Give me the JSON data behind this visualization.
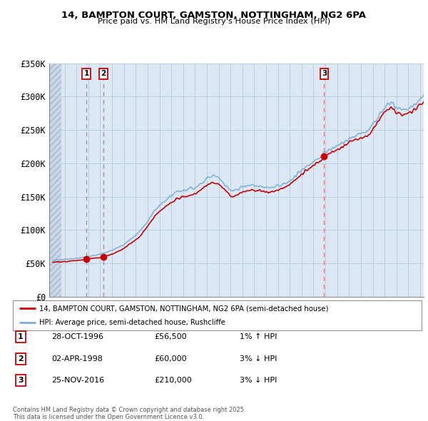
{
  "title": "14, BAMPTON COURT, GAMSTON, NOTTINGHAM, NG2 6PA",
  "subtitle": "Price paid vs. HM Land Registry's House Price Index (HPI)",
  "legend_label_red": "14, BAMPTON COURT, GAMSTON, NOTTINGHAM, NG2 6PA (semi-detached house)",
  "legend_label_blue": "HPI: Average price, semi-detached house, Rushcliffe",
  "footer_line1": "Contains HM Land Registry data © Crown copyright and database right 2025.",
  "footer_line2": "This data is licensed under the Open Government Licence v3.0.",
  "sales": [
    {
      "num": 1,
      "date": "28-OCT-1996",
      "price": 56500,
      "year": 1996.83,
      "pct": "1%",
      "dir": "↑"
    },
    {
      "num": 2,
      "date": "02-APR-1998",
      "price": 60000,
      "year": 1998.25,
      "pct": "3%",
      "dir": "↓"
    },
    {
      "num": 3,
      "date": "25-NOV-2016",
      "price": 210000,
      "year": 2016.9,
      "pct": "3%",
      "dir": "↓"
    }
  ],
  "ylim": [
    0,
    350000
  ],
  "xlim_start": 1993.7,
  "xlim_end": 2025.3,
  "yticks": [
    0,
    50000,
    100000,
    150000,
    200000,
    250000,
    300000,
    350000
  ],
  "ytick_labels": [
    "£0",
    "£50K",
    "£100K",
    "£150K",
    "£200K",
    "£250K",
    "£300K",
    "£350K"
  ],
  "xticks": [
    1994,
    1995,
    1996,
    1997,
    1998,
    1999,
    2000,
    2001,
    2002,
    2003,
    2004,
    2005,
    2006,
    2007,
    2008,
    2009,
    2010,
    2011,
    2012,
    2013,
    2014,
    2015,
    2016,
    2017,
    2018,
    2019,
    2020,
    2021,
    2022,
    2023,
    2024,
    2025
  ],
  "bg_color": "#ffffff",
  "plot_bg_color": "#dce9f5",
  "hatch_region_end": 1994.75,
  "grid_color": "#b8cfe0",
  "red_color": "#cc0000",
  "blue_color": "#7aaed6",
  "red_dot_color": "#cc0000",
  "dashed_color": "#e87070",
  "hpi_knots": {
    "1994.0": 55000,
    "1994.5": 55500,
    "1995.0": 56000,
    "1995.5": 56800,
    "1996.0": 57500,
    "1996.5": 58500,
    "1997.0": 60500,
    "1997.5": 62000,
    "1998.0": 64000,
    "1998.5": 67000,
    "1999.0": 70000,
    "1999.5": 74000,
    "2000.0": 79000,
    "2000.5": 86000,
    "2001.0": 93000,
    "2001.5": 102000,
    "2002.0": 115000,
    "2002.5": 128000,
    "2003.0": 138000,
    "2003.5": 145000,
    "2004.0": 152000,
    "2004.5": 158000,
    "2005.0": 160000,
    "2005.5": 161000,
    "2006.0": 164000,
    "2006.5": 170000,
    "2007.0": 178000,
    "2007.5": 182000,
    "2008.0": 178000,
    "2008.5": 168000,
    "2009.0": 158000,
    "2009.5": 160000,
    "2010.0": 165000,
    "2010.5": 167000,
    "2011.0": 167000,
    "2011.5": 166000,
    "2012.0": 163000,
    "2012.5": 164000,
    "2013.0": 166000,
    "2013.5": 170000,
    "2014.0": 175000,
    "2014.5": 182000,
    "2015.0": 190000,
    "2015.5": 197000,
    "2016.0": 203000,
    "2016.5": 208000,
    "2017.0": 217000,
    "2017.5": 222000,
    "2018.0": 227000,
    "2018.5": 232000,
    "2019.0": 237000,
    "2019.5": 241000,
    "2020.0": 243000,
    "2020.5": 248000,
    "2021.0": 258000,
    "2021.5": 272000,
    "2022.0": 285000,
    "2022.5": 292000,
    "2023.0": 283000,
    "2023.5": 279000,
    "2024.0": 282000,
    "2024.5": 288000,
    "2025.0": 295000,
    "2025.3": 300000
  }
}
